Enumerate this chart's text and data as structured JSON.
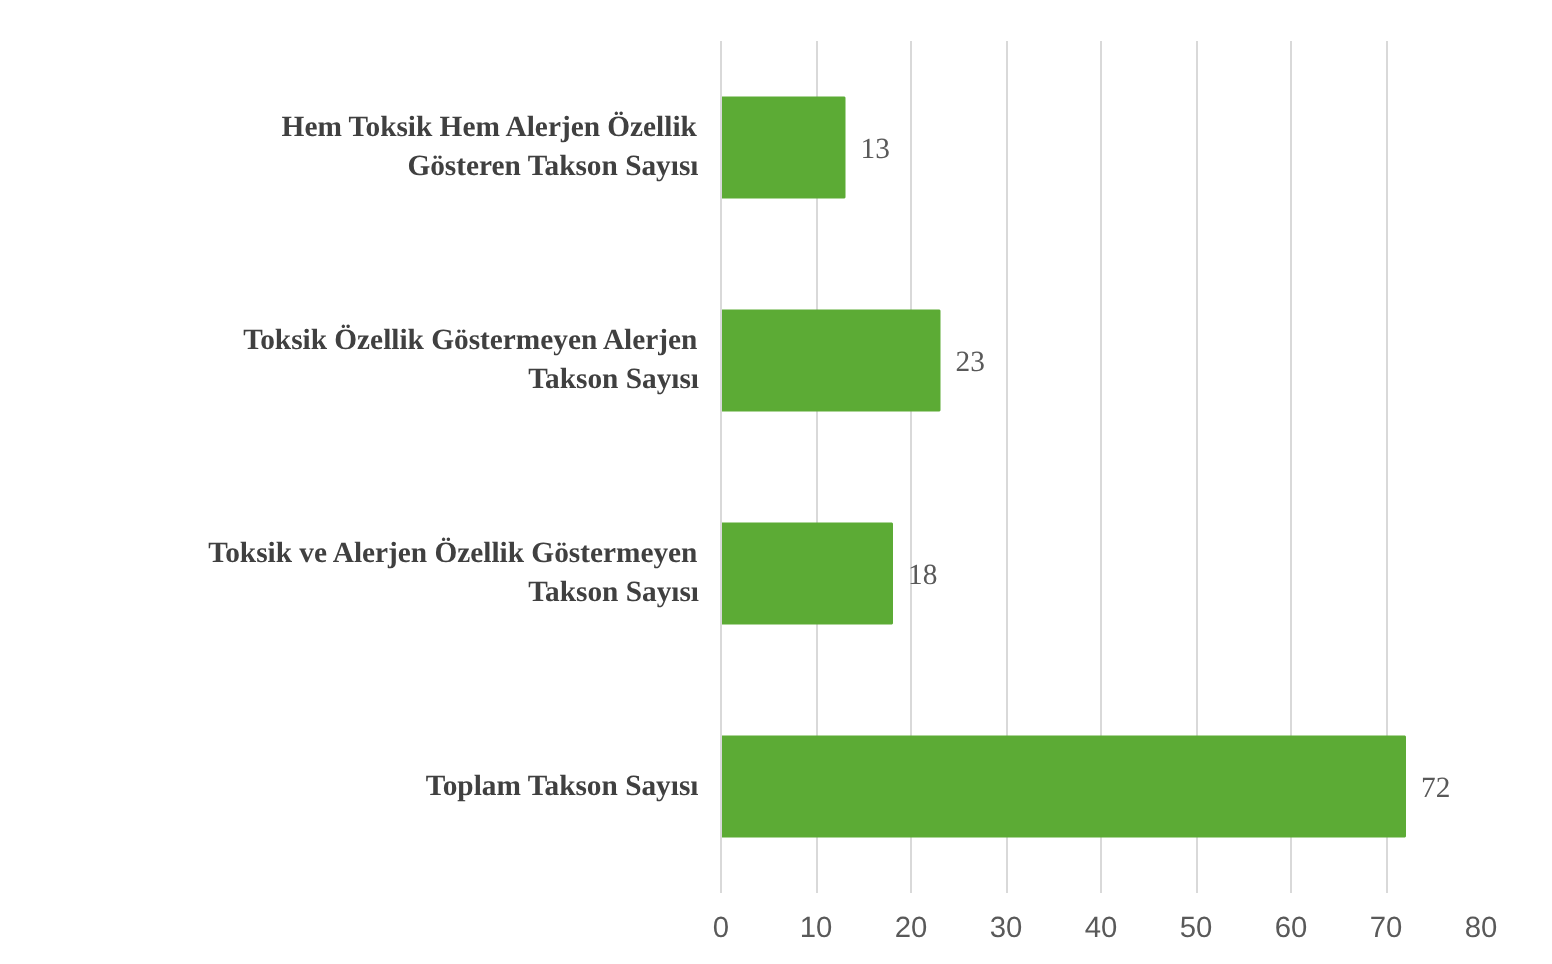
{
  "chart_data": {
    "type": "bar",
    "orientation": "horizontal",
    "categories": [
      "Hem Toksik Hem Alerjen Özellik Gösteren Takson Sayısı",
      "Toksik Özellik Göstermeyen Alerjen Takson Sayısı",
      "Toksik ve Alerjen Özellik Göstermeyen Takson Sayısı",
      "Toplam Takson Sayısı"
    ],
    "values": [
      13,
      23,
      18,
      72
    ],
    "color": "#5cab35",
    "data_labels": true,
    "xlim": [
      0,
      80
    ],
    "xticks": [
      0,
      10,
      20,
      30,
      40,
      50,
      60,
      70,
      80
    ],
    "grid": "x"
  }
}
